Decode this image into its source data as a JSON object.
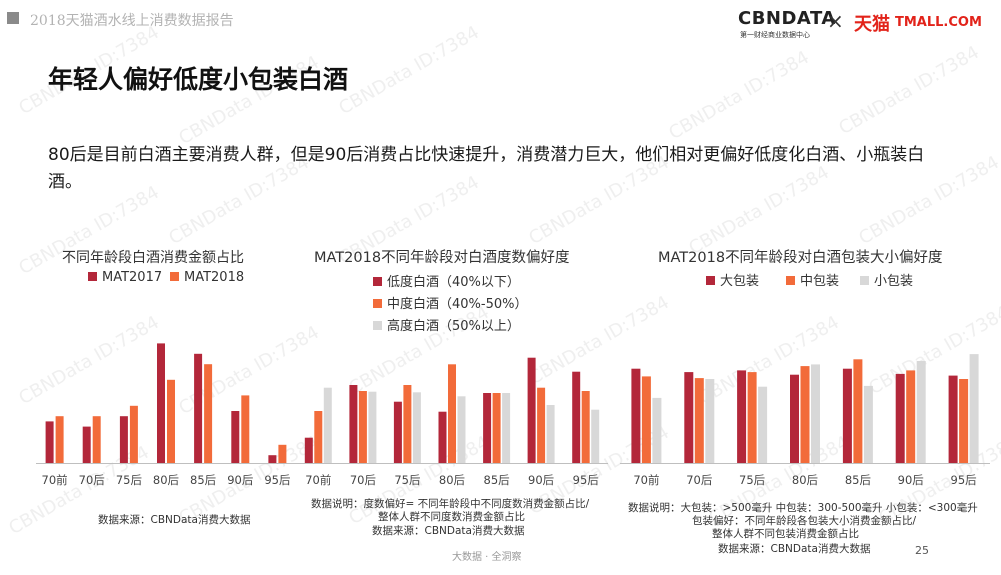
{
  "header": {
    "report_title": "2018天猫酒水线上消费数据报告",
    "logo_cbn": "CBNDATA",
    "logo_cbn_sub": "第一财经商业数据中心",
    "logo_x": "×",
    "logo_tmall": "天猫",
    "logo_tmall_com": "TMALL.COM"
  },
  "headline": "年轻人偏好低度小包装白酒",
  "intro": "80后是目前白酒主要消费人群，但是90后消费占比快速提升，消费潜力巨大，他们相对更偏好低度化白酒、小瓶装白酒。",
  "colors": {
    "dark_red": "#b3273a",
    "orange": "#f26b3a",
    "gray": "#d8d8d8"
  },
  "chart_data": [
    {
      "type": "bar",
      "title": "不同年龄段白酒消费金额占比",
      "categories": [
        "70前",
        "70后",
        "75后",
        "80后",
        "85后",
        "90后",
        "95后"
      ],
      "series": [
        {
          "name": "MAT2017",
          "color": "#b3273a",
          "values": [
            8,
            7,
            9,
            23,
            21,
            10,
            1.5
          ]
        },
        {
          "name": "MAT2018",
          "color": "#f26b3a",
          "values": [
            9,
            9,
            11,
            16,
            19,
            13,
            3.5
          ]
        }
      ],
      "ylim": [
        0,
        25
      ],
      "note": "数据来源：CBNData消费大数据"
    },
    {
      "type": "bar",
      "title": "MAT2018不同年龄段对白酒度数偏好度",
      "categories": [
        "70前",
        "70后",
        "75后",
        "80后",
        "85后",
        "90后",
        "95后"
      ],
      "series": [
        {
          "name": "低度白酒（40%以下）",
          "color": "#b3273a",
          "values": [
            0.38,
            1.17,
            0.92,
            0.77,
            1.05,
            1.58,
            1.37
          ]
        },
        {
          "name": "中度白酒（40%-50%）",
          "color": "#f26b3a",
          "values": [
            0.78,
            1.08,
            1.17,
            1.48,
            1.05,
            1.13,
            1.08
          ]
        },
        {
          "name": "高度白酒（50%以上）",
          "color": "#d8d8d8",
          "values": [
            1.13,
            1.07,
            1.06,
            1.0,
            1.05,
            0.87,
            0.8
          ]
        }
      ],
      "ylim": [
        0,
        1.8
      ],
      "note_lines": [
        "数据说明：度数偏好= 不同年龄段中不同度数消费金额占比/",
        "整体人群不同度数消费金额占比",
        "数据来源：CBNData消费大数据"
      ]
    },
    {
      "type": "bar",
      "title": "MAT2018不同年龄段对白酒包装大小偏好度",
      "categories": [
        "70前",
        "70后",
        "75后",
        "80后",
        "85后",
        "90后",
        "95后"
      ],
      "series": [
        {
          "name": "大包装",
          "color": "#b3273a",
          "values": [
            1.1,
            1.06,
            1.08,
            1.03,
            1.1,
            1.04,
            1.02
          ]
        },
        {
          "name": "中包装",
          "color": "#f26b3a",
          "values": [
            1.01,
            0.99,
            1.06,
            1.13,
            1.21,
            1.08,
            0.98
          ]
        },
        {
          "name": "小包装",
          "color": "#d8d8d8",
          "values": [
            0.76,
            0.98,
            0.89,
            1.15,
            0.9,
            1.19,
            1.27
          ]
        }
      ],
      "ylim": [
        0,
        1.4
      ],
      "note_lines": [
        "数据说明：大包装：>500毫升   中包装：300-500毫升 小包装：<300毫升",
        "包装偏好：不同年龄段各包装大小消费金额占比/",
        "整体人群不同包装消费金额占比",
        "数据来源：CBNData消费大数据"
      ]
    }
  ],
  "footer": {
    "brand": "大数据 · 全洞察",
    "page": "25"
  },
  "watermark": "CBNData ID:7384"
}
